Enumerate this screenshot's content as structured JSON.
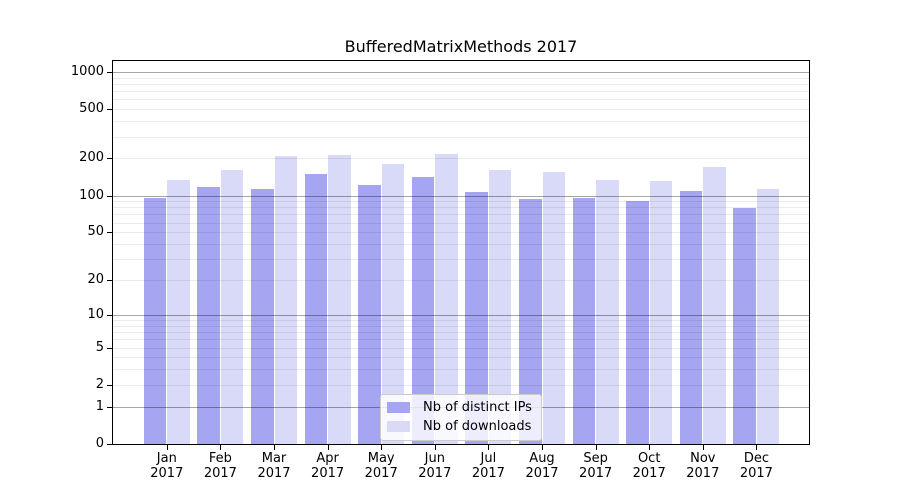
{
  "title": "BufferedMatrixMethods 2017",
  "chart_data": {
    "type": "bar",
    "title": "BufferedMatrixMethods 2017",
    "categories": [
      "Jan",
      "Feb",
      "Mar",
      "Apr",
      "May",
      "Jun",
      "Jul",
      "Aug",
      "Sep",
      "Oct",
      "Nov",
      "Dec"
    ],
    "category_year": "2017",
    "series": [
      {
        "name": "Nb of distinct IPs",
        "color": "#a5a5f2",
        "values": [
          95,
          117,
          114,
          150,
          121,
          142,
          107,
          93,
          96,
          90,
          108,
          79
        ]
      },
      {
        "name": "Nb of downloads",
        "color": "#d9d9f8",
        "values": [
          134,
          160,
          208,
          214,
          179,
          218,
          161,
          156,
          133,
          132,
          169,
          113
        ]
      }
    ],
    "y_axis": {
      "scale": "log1p",
      "ticks": [
        1000,
        500,
        200,
        100,
        50,
        20,
        10,
        5,
        2,
        1,
        0
      ],
      "major_gridlines": [
        1,
        10,
        100,
        1000
      ],
      "range_top_value": 1250
    },
    "x_axis": {
      "label_line2": "2017"
    },
    "legend": {
      "position": "bottom-center",
      "entries": [
        "Nb of distinct IPs",
        "Nb of downloads"
      ]
    },
    "grid": true,
    "colors": {
      "distinct_ips_bar": "#a5a5f2",
      "downloads_bar": "#d9d9f8",
      "axis": "#000000",
      "background": "#ffffff"
    }
  }
}
